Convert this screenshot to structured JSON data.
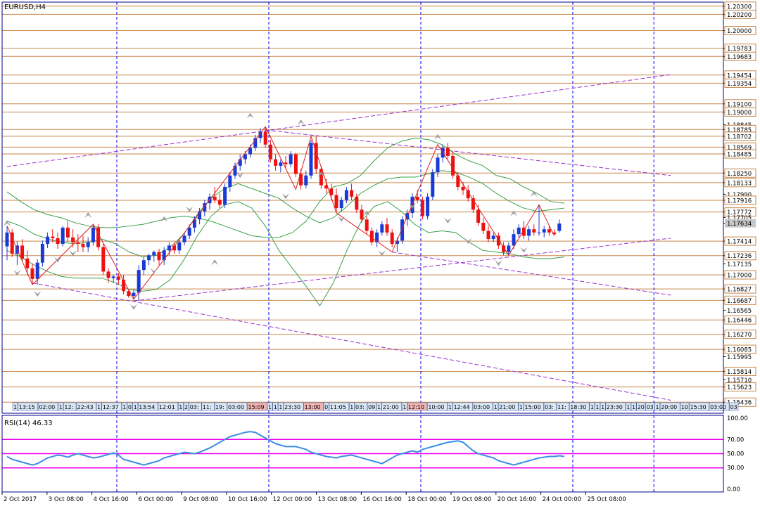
{
  "window_title": "EURUSD,H4",
  "colors": {
    "background": "#ffffff",
    "frame": "#00008b",
    "grid_vertical": "#0000ff",
    "level_line": "#c8864a",
    "bull_candle": "#1a3ad6",
    "bear_candle": "#ee1111",
    "bollinger": "#3aa04a",
    "trendline": "#9b30d0",
    "zigzag": "#dd2020",
    "rsi_line": "#3a8ee6",
    "rsi_level": "#ee00ee",
    "fractal": "#9a9a9a",
    "label_box_fill": "#dce8f8",
    "label_box_red": "#f4b4b4"
  },
  "chart_data": {
    "type": "candlestick",
    "symbol": "EURUSD",
    "timeframe": "H4",
    "ylim": [
      1.153,
      1.2035
    ],
    "y_ticks": [
      "1.20300",
      "1.20200",
      "1.20000",
      "1.19783",
      "1.19683",
      "1.19454",
      "1.19354",
      "1.19100",
      "1.19000",
      "1.18845",
      "1.18785",
      "1.18702",
      "1.18569",
      "1.18485",
      "1.18250",
      "1.18133",
      "1.17990",
      "1.17916",
      "1.17772",
      "1.17705",
      "1.17634",
      "1.17414",
      "1.17236",
      "1.17135",
      "1.17000",
      "1.16827",
      "1.16687",
      "1.16565",
      "1.16446",
      "1.16270",
      "1.16085",
      "1.15995",
      "1.15814",
      "1.15710",
      "1.15623",
      "1.15436"
    ],
    "boxed_ticks": [
      "1.20300",
      "1.20200",
      "1.20000",
      "1.19783",
      "1.19683",
      "1.19454",
      "1.19354",
      "1.19100",
      "1.19000",
      "1.18785",
      "1.18702",
      "1.18569",
      "1.18485",
      "1.18250",
      "1.18133",
      "1.17916",
      "1.17772",
      "1.17634",
      "1.17414",
      "1.17236",
      "1.17000",
      "1.16827",
      "1.16687",
      "1.16446",
      "1.16270",
      "1.16085",
      "1.15814",
      "1.15623",
      "1.15436"
    ],
    "current_price": "1.17634",
    "horizontal_levels": [
      1.203,
      1.202,
      1.2,
      1.19783,
      1.19683,
      1.19454,
      1.19354,
      1.191,
      1.19,
      1.18785,
      1.18702,
      1.18569,
      1.18485,
      1.1825,
      1.18133,
      1.17916,
      1.17772,
      1.17414,
      1.17236,
      1.17,
      1.16827,
      1.16687,
      1.16446,
      1.1627,
      1.16085,
      1.15814,
      1.15623,
      1.15436
    ],
    "x_labels": [
      "2 Oct 2017",
      "3 Oct 08:00",
      "4 Oct 16:00",
      "6 Oct 00:00",
      "9 Oct 08:00",
      "10 Oct 16:00",
      "12 Oct 00:00",
      "13 Oct 08:00",
      "16 Oct 16:00",
      "18 Oct 00:00",
      "19 Oct 08:00",
      "20 Oct 16:00",
      "24 Oct 00:00",
      "25 Oct 08:00"
    ],
    "candles_ohlc": [
      [
        1.1735,
        1.176,
        1.1718,
        1.1752
      ],
      [
        1.1752,
        1.1756,
        1.1722,
        1.1726
      ],
      [
        1.1726,
        1.1741,
        1.1712,
        1.1736
      ],
      [
        1.1736,
        1.1744,
        1.1716,
        1.172
      ],
      [
        1.172,
        1.173,
        1.17,
        1.1708
      ],
      [
        1.1708,
        1.1714,
        1.1688,
        1.1695
      ],
      [
        1.1695,
        1.1719,
        1.1688,
        1.1715
      ],
      [
        1.1715,
        1.1742,
        1.171,
        1.1738
      ],
      [
        1.1738,
        1.1752,
        1.1733,
        1.1747
      ],
      [
        1.1747,
        1.1756,
        1.174,
        1.1745
      ],
      [
        1.1745,
        1.1752,
        1.1732,
        1.1738
      ],
      [
        1.1738,
        1.176,
        1.1735,
        1.1758
      ],
      [
        1.1758,
        1.1766,
        1.174,
        1.1746
      ],
      [
        1.1746,
        1.1756,
        1.1734,
        1.174
      ],
      [
        1.174,
        1.175,
        1.1728,
        1.1738
      ],
      [
        1.1738,
        1.1748,
        1.1728,
        1.1734
      ],
      [
        1.1734,
        1.1746,
        1.1728,
        1.174
      ],
      [
        1.174,
        1.1762,
        1.1736,
        1.1758
      ],
      [
        1.1758,
        1.1762,
        1.173,
        1.1734
      ],
      [
        1.1734,
        1.1738,
        1.17,
        1.1704
      ],
      [
        1.1704,
        1.1708,
        1.169,
        1.1696
      ],
      [
        1.1696,
        1.17,
        1.169,
        1.1698
      ],
      [
        1.1698,
        1.1702,
        1.1688,
        1.1694
      ],
      [
        1.1694,
        1.17,
        1.1676,
        1.168
      ],
      [
        1.168,
        1.1682,
        1.1672,
        1.1674
      ],
      [
        1.1674,
        1.1682,
        1.167,
        1.1678
      ],
      [
        1.1678,
        1.1712,
        1.1668,
        1.1706
      ],
      [
        1.1706,
        1.1722,
        1.17,
        1.1718
      ],
      [
        1.1718,
        1.1726,
        1.1712,
        1.1724
      ],
      [
        1.1724,
        1.173,
        1.1716,
        1.1728
      ],
      [
        1.1728,
        1.1732,
        1.1712,
        1.1718
      ],
      [
        1.1718,
        1.1734,
        1.1712,
        1.173
      ],
      [
        1.173,
        1.174,
        1.1724,
        1.1736
      ],
      [
        1.1736,
        1.174,
        1.1726,
        1.173
      ],
      [
        1.173,
        1.1744,
        1.1726,
        1.174
      ],
      [
        1.174,
        1.1752,
        1.1736,
        1.1748
      ],
      [
        1.1748,
        1.1762,
        1.1744,
        1.1758
      ],
      [
        1.1758,
        1.1772,
        1.1752,
        1.1768
      ],
      [
        1.1768,
        1.1782,
        1.1762,
        1.1778
      ],
      [
        1.1778,
        1.1792,
        1.1772,
        1.1788
      ],
      [
        1.1788,
        1.18,
        1.178,
        1.1796
      ],
      [
        1.1796,
        1.1808,
        1.1788,
        1.1792
      ],
      [
        1.1792,
        1.18,
        1.1782,
        1.1786
      ],
      [
        1.1786,
        1.1812,
        1.1782,
        1.1808
      ],
      [
        1.1808,
        1.1826,
        1.1802,
        1.1822
      ],
      [
        1.1822,
        1.1838,
        1.1818,
        1.1834
      ],
      [
        1.1834,
        1.1848,
        1.1828,
        1.1842
      ],
      [
        1.1842,
        1.1852,
        1.1836,
        1.1848
      ],
      [
        1.1848,
        1.186,
        1.1844,
        1.1856
      ],
      [
        1.1856,
        1.1872,
        1.1852,
        1.1868
      ],
      [
        1.1868,
        1.188,
        1.1862,
        1.1876
      ],
      [
        1.1876,
        1.1882,
        1.1856,
        1.186
      ],
      [
        1.186,
        1.1866,
        1.1838,
        1.1842
      ],
      [
        1.1842,
        1.1848,
        1.1828,
        1.1834
      ],
      [
        1.1834,
        1.1842,
        1.1826,
        1.1838
      ],
      [
        1.1838,
        1.1846,
        1.183,
        1.1836
      ],
      [
        1.1836,
        1.1852,
        1.1832,
        1.1848
      ],
      [
        1.1848,
        1.185,
        1.182,
        1.1824
      ],
      [
        1.1824,
        1.183,
        1.1805,
        1.181
      ],
      [
        1.181,
        1.1828,
        1.1806,
        1.1822
      ],
      [
        1.1822,
        1.1866,
        1.1818,
        1.1862
      ],
      [
        1.1862,
        1.187,
        1.1824,
        1.183
      ],
      [
        1.183,
        1.1834,
        1.1806,
        1.181
      ],
      [
        1.181,
        1.1818,
        1.18,
        1.1806
      ],
      [
        1.1806,
        1.1812,
        1.1792,
        1.1798
      ],
      [
        1.1798,
        1.1806,
        1.1776,
        1.1782
      ],
      [
        1.1782,
        1.1796,
        1.1778,
        1.1792
      ],
      [
        1.1792,
        1.1808,
        1.1788,
        1.1804
      ],
      [
        1.1804,
        1.1812,
        1.1792,
        1.1796
      ],
      [
        1.1796,
        1.18,
        1.1776,
        1.178
      ],
      [
        1.178,
        1.1786,
        1.1764,
        1.1768
      ],
      [
        1.1768,
        1.1772,
        1.175,
        1.1754
      ],
      [
        1.1754,
        1.1758,
        1.1736,
        1.174
      ],
      [
        1.174,
        1.1756,
        1.1734,
        1.1752
      ],
      [
        1.1752,
        1.1766,
        1.1748,
        1.1762
      ],
      [
        1.1762,
        1.177,
        1.1748,
        1.1752
      ],
      [
        1.1752,
        1.1756,
        1.1734,
        1.1738
      ],
      [
        1.1738,
        1.1746,
        1.1728,
        1.1742
      ],
      [
        1.1742,
        1.1772,
        1.1738,
        1.1768
      ],
      [
        1.1768,
        1.178,
        1.176,
        1.1776
      ],
      [
        1.1776,
        1.18,
        1.177,
        1.1796
      ],
      [
        1.1796,
        1.1804,
        1.1788,
        1.1792
      ],
      [
        1.1792,
        1.1796,
        1.1768,
        1.1772
      ],
      [
        1.1772,
        1.18,
        1.1768,
        1.1796
      ],
      [
        1.1796,
        1.183,
        1.1792,
        1.1826
      ],
      [
        1.1826,
        1.1848,
        1.182,
        1.1844
      ],
      [
        1.1844,
        1.186,
        1.1838,
        1.1856
      ],
      [
        1.1856,
        1.1862,
        1.1842,
        1.1846
      ],
      [
        1.1846,
        1.1852,
        1.1818,
        1.1822
      ],
      [
        1.1822,
        1.1826,
        1.1804,
        1.1808
      ],
      [
        1.1808,
        1.1814,
        1.1798,
        1.1804
      ],
      [
        1.1804,
        1.181,
        1.179,
        1.1794
      ],
      [
        1.1794,
        1.1798,
        1.1776,
        1.178
      ],
      [
        1.178,
        1.1786,
        1.176,
        1.1764
      ],
      [
        1.1764,
        1.177,
        1.175,
        1.1754
      ],
      [
        1.1754,
        1.176,
        1.174,
        1.1744
      ],
      [
        1.1744,
        1.1752,
        1.174,
        1.1748
      ],
      [
        1.1748,
        1.1752,
        1.1732,
        1.1736
      ],
      [
        1.1736,
        1.174,
        1.1724,
        1.1728
      ],
      [
        1.1728,
        1.174,
        1.1724,
        1.1736
      ],
      [
        1.1736,
        1.1756,
        1.1732,
        1.175
      ],
      [
        1.175,
        1.1762,
        1.1746,
        1.1758
      ],
      [
        1.1758,
        1.1766,
        1.1744,
        1.1748
      ],
      [
        1.1748,
        1.176,
        1.1742,
        1.1756
      ],
      [
        1.1756,
        1.1762,
        1.1748,
        1.1752
      ],
      [
        1.1752,
        1.1786,
        1.1748,
        1.1752
      ],
      [
        1.1752,
        1.176,
        1.1746,
        1.1756
      ],
      [
        1.1756,
        1.176,
        1.1748,
        1.1752
      ],
      [
        1.1752,
        1.1756,
        1.1748,
        1.175
      ],
      [
        1.1754,
        1.1768,
        1.1752,
        1.1763
      ]
    ],
    "bollinger_upper": [
      1.1802,
      1.179,
      1.178,
      1.1774,
      1.177,
      1.1764,
      1.176,
      1.1758,
      1.1758,
      1.176,
      1.1762,
      1.1766,
      1.177,
      1.1772,
      1.177,
      1.1766,
      1.176,
      1.1754,
      1.1748,
      1.1746,
      1.1746,
      1.1752,
      1.1766,
      1.179,
      1.1808,
      1.1812,
      1.1822,
      1.184,
      1.1856,
      1.1864,
      1.1868,
      1.1866,
      1.186,
      1.1848,
      1.184,
      1.1834,
      1.1822,
      1.1818,
      1.1808,
      1.18,
      1.179,
      1.1788
    ],
    "bollinger_middle": [
      1.1766,
      1.176,
      1.175,
      1.1744,
      1.174,
      1.1738,
      1.174,
      1.1744,
      1.1738,
      1.1728,
      1.1722,
      1.1724,
      1.1734,
      1.175,
      1.1774,
      1.1794,
      1.1806,
      1.1812,
      1.1806,
      1.18,
      1.1794,
      1.1782,
      1.1772,
      1.1764,
      1.177,
      1.1784,
      1.18,
      1.181,
      1.1818,
      1.182,
      1.182,
      1.1824,
      1.1828,
      1.1826,
      1.182,
      1.1812,
      1.18,
      1.179,
      1.1782,
      1.1778,
      1.178,
      1.1782
    ],
    "bollinger_lower": [
      1.173,
      1.1722,
      1.1712,
      1.1704,
      1.1698,
      1.1696,
      1.1696,
      1.1696,
      1.169,
      1.1682,
      1.168,
      1.1682,
      1.1694,
      1.1718,
      1.1748,
      1.1772,
      1.1786,
      1.179,
      1.1782,
      1.176,
      1.173,
      1.1708,
      1.1686,
      1.1662,
      1.169,
      1.173,
      1.1764,
      1.1784,
      1.179,
      1.1778,
      1.1762,
      1.1752,
      1.1754,
      1.1752,
      1.174,
      1.173,
      1.1728,
      1.1726,
      1.1722,
      1.172,
      1.172,
      1.1722
    ],
    "zigzag": [
      [
        0,
        1.176
      ],
      [
        5,
        1.1688
      ],
      [
        17,
        1.1762
      ],
      [
        25,
        1.167
      ],
      [
        51,
        1.1882
      ],
      [
        57,
        1.1805
      ],
      [
        60,
        1.187
      ],
      [
        65,
        1.1776
      ],
      [
        76,
        1.1728
      ],
      [
        85,
        1.186
      ],
      [
        99,
        1.1724
      ],
      [
        105,
        1.1786
      ],
      [
        108,
        1.1748
      ]
    ],
    "trendlines": [
      {
        "from": [
          0,
          1.1833
        ],
        "to": [
          131,
          1.1946
        ]
      },
      {
        "from": [
          51,
          1.1878
        ],
        "to": [
          131,
          1.1822
        ]
      },
      {
        "from": [
          5,
          1.169
        ],
        "to": [
          131,
          1.1546
        ]
      },
      {
        "from": [
          25,
          1.1668
        ],
        "to": [
          131,
          1.1745
        ]
      },
      {
        "from": [
          76,
          1.1728
        ],
        "to": [
          131,
          1.1675
        ]
      }
    ],
    "fractal_points": [
      {
        "i": 0,
        "p": 1.176,
        "dir": "up"
      },
      {
        "i": 16,
        "p": 1.177,
        "dir": "up"
      },
      {
        "i": 31,
        "p": 1.1765,
        "dir": "up"
      },
      {
        "i": 41,
        "p": 1.1712,
        "dir": "up"
      },
      {
        "i": 48,
        "p": 1.1892,
        "dir": "up"
      },
      {
        "i": 58,
        "p": 1.1884,
        "dir": "up"
      },
      {
        "i": 62,
        "p": 1.182,
        "dir": "up"
      },
      {
        "i": 71,
        "p": 1.1772,
        "dir": "up"
      },
      {
        "i": 85,
        "p": 1.1866,
        "dir": "up"
      },
      {
        "i": 100,
        "p": 1.1772,
        "dir": "up"
      },
      {
        "i": 104,
        "p": 1.1796,
        "dir": "up"
      },
      {
        "i": 2,
        "p": 1.1706,
        "dir": "down"
      },
      {
        "i": 6,
        "p": 1.168,
        "dir": "down"
      },
      {
        "i": 10,
        "p": 1.1722,
        "dir": "down"
      },
      {
        "i": 13,
        "p": 1.173,
        "dir": "down"
      },
      {
        "i": 25,
        "p": 1.1664,
        "dir": "down"
      },
      {
        "i": 29,
        "p": 1.1708,
        "dir": "down"
      },
      {
        "i": 36,
        "p": 1.1784,
        "dir": "down"
      },
      {
        "i": 46,
        "p": 1.1826,
        "dir": "down"
      },
      {
        "i": 55,
        "p": 1.18,
        "dir": "down"
      },
      {
        "i": 66,
        "p": 1.1772,
        "dir": "down"
      },
      {
        "i": 74,
        "p": 1.173,
        "dir": "down"
      },
      {
        "i": 80,
        "p": 1.1788,
        "dir": "down"
      },
      {
        "i": 87,
        "p": 1.177,
        "dir": "down"
      },
      {
        "i": 91,
        "p": 1.1745,
        "dir": "down"
      },
      {
        "i": 97,
        "p": 1.1718,
        "dir": "down"
      },
      {
        "i": 102,
        "p": 1.1734,
        "dir": "down"
      }
    ],
    "x_period_separators": [
      20,
      50,
      80,
      110,
      126
    ],
    "rsi": {
      "label": "RSI(14) 46.33",
      "period": 14,
      "current": 46.33,
      "levels": [
        70,
        50,
        30
      ],
      "ylim": [
        0,
        100
      ],
      "ticks": [
        "100.00",
        "70.00",
        "50.00",
        "30.00",
        "0.00"
      ],
      "values": [
        46,
        42,
        40,
        38,
        36,
        34,
        36,
        40,
        44,
        46,
        48,
        47,
        45,
        48,
        50,
        48,
        46,
        44,
        45,
        47,
        49,
        51,
        48,
        42,
        40,
        38,
        36,
        34,
        36,
        38,
        40,
        44,
        46,
        48,
        50,
        52,
        51,
        50,
        52,
        55,
        58,
        62,
        66,
        70,
        74,
        76,
        78,
        80,
        81,
        80,
        76,
        72,
        68,
        64,
        62,
        60,
        60,
        60,
        58,
        56,
        52,
        50,
        48,
        46,
        45,
        44,
        46,
        47,
        48,
        46,
        44,
        42,
        40,
        38,
        36,
        40,
        44,
        48,
        50,
        52,
        54,
        52,
        56,
        58,
        60,
        62,
        64,
        66,
        67,
        68,
        66,
        60,
        54,
        50,
        48,
        46,
        44,
        40,
        38,
        36,
        34,
        36,
        38,
        40,
        42,
        44,
        45,
        46,
        46,
        47,
        46
      ]
    },
    "time_label_strip": [
      "1",
      "13:15",
      "02:00",
      "1",
      "12:",
      "22:43",
      "1",
      "12:37",
      "1",
      "0",
      "1",
      "13:54",
      "12:01",
      "1",
      "2",
      "03:",
      "11:",
      "19:",
      "03:00",
      "15:09",
      "1",
      "1",
      "1",
      "23:30",
      "13:00",
      "0",
      "11:05",
      "1",
      "03:",
      "09",
      "1",
      "21:00",
      "1",
      "12:10",
      "10:00",
      "1",
      "12:44",
      "03:00",
      "1",
      "21:00",
      "1",
      "15:00",
      "03:",
      "11:",
      "18:30",
      "1",
      "1",
      "1",
      "23:30",
      "1",
      "1",
      "20",
      "03",
      "1",
      "20:00",
      "10",
      "15:30",
      "03:00",
      "03"
    ]
  }
}
